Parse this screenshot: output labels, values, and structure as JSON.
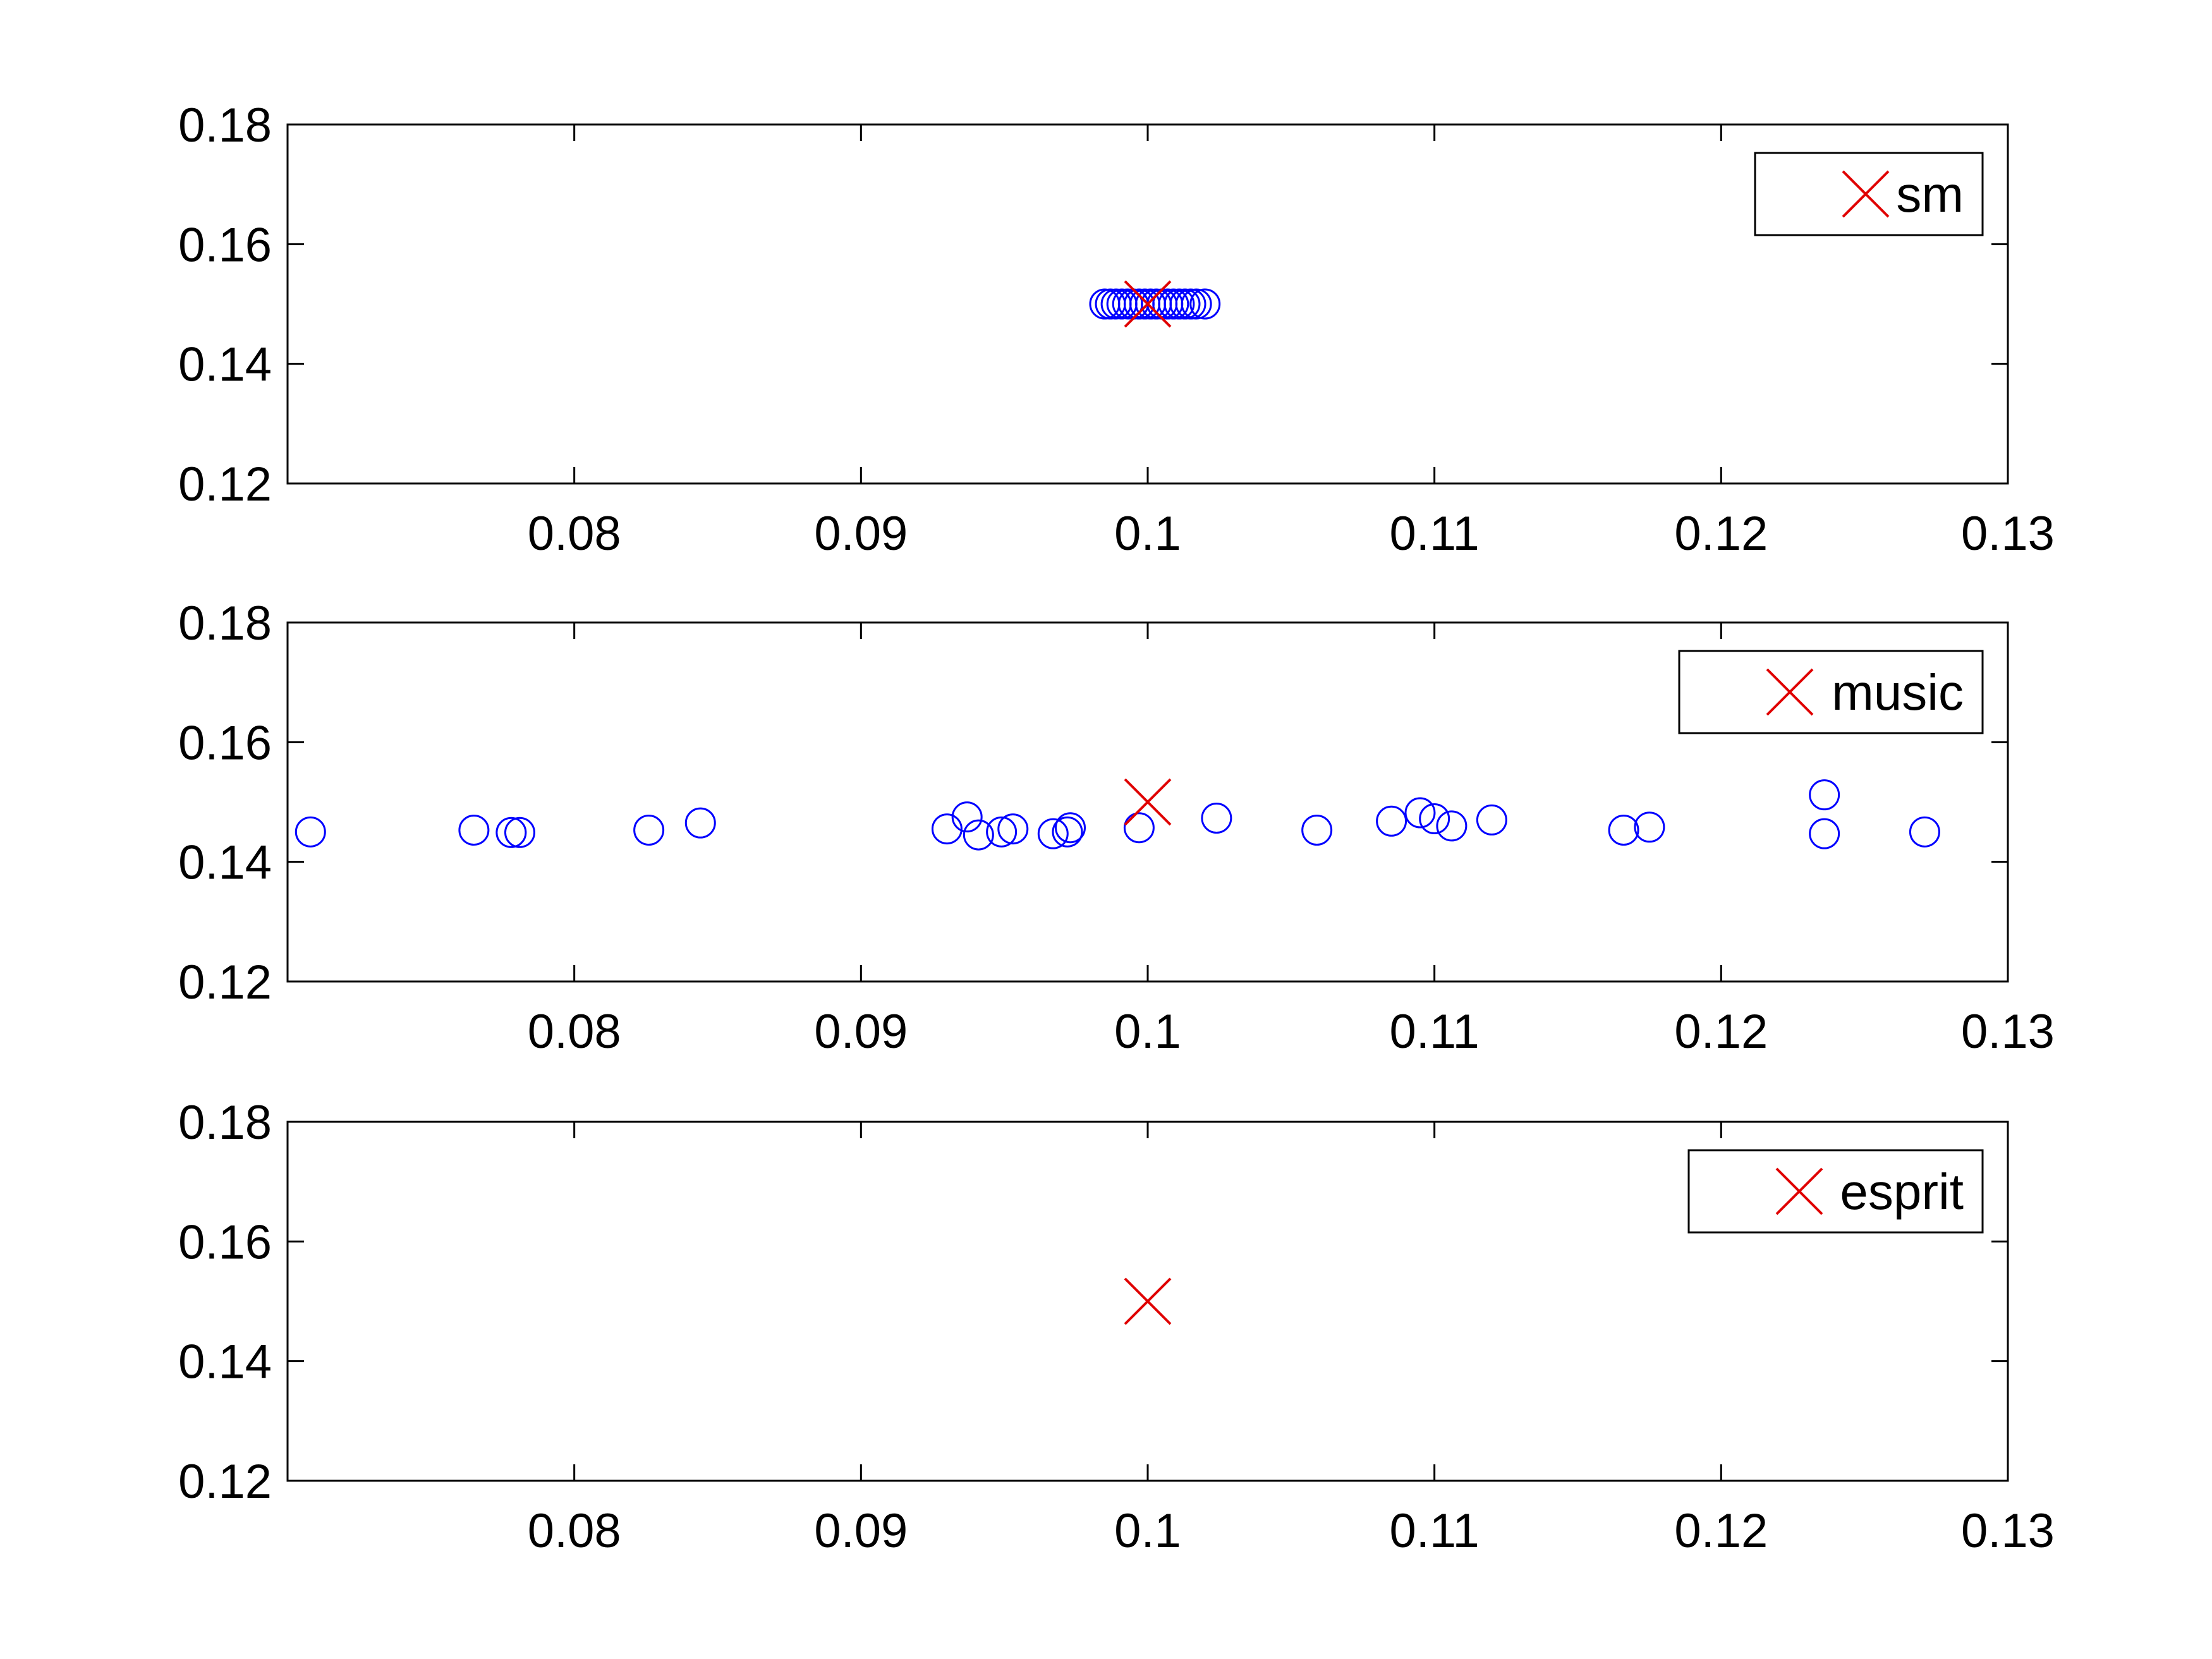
{
  "chart_data": [
    {
      "type": "scatter",
      "xlim": [
        0.07,
        0.13
      ],
      "ylim": [
        0.12,
        0.18
      ],
      "xticks": [
        "0.08",
        "0.09",
        "0.1",
        "0.11",
        "0.12",
        "0.13"
      ],
      "yticks": [
        "0.12",
        "0.14",
        "0.16",
        "0.18"
      ],
      "legend": {
        "label": "sm",
        "placement": "top-right",
        "marker": "x",
        "color": "#e00000"
      },
      "series": [
        {
          "marker": "circle",
          "color": "#0000ff",
          "points": [
            [
              0.0985,
              0.15
            ],
            [
              0.0987,
              0.15
            ],
            [
              0.0989,
              0.15
            ],
            [
              0.0991,
              0.15
            ],
            [
              0.0993,
              0.15
            ],
            [
              0.0995,
              0.15
            ],
            [
              0.0997,
              0.15
            ],
            [
              0.0999,
              0.15
            ],
            [
              0.1001,
              0.15
            ],
            [
              0.1003,
              0.15
            ],
            [
              0.1005,
              0.15
            ],
            [
              0.1007,
              0.15
            ],
            [
              0.1009,
              0.15
            ],
            [
              0.1011,
              0.15
            ],
            [
              0.1013,
              0.15
            ],
            [
              0.1015,
              0.15
            ],
            [
              0.1017,
              0.15
            ],
            [
              0.102,
              0.15
            ]
          ]
        },
        {
          "marker": "x",
          "color": "#e00000",
          "points": [
            [
              0.1,
              0.15
            ]
          ]
        }
      ]
    },
    {
      "type": "scatter",
      "xlim": [
        0.07,
        0.13
      ],
      "ylim": [
        0.12,
        0.18
      ],
      "xticks": [
        "0.08",
        "0.09",
        "0.1",
        "0.11",
        "0.12",
        "0.13"
      ],
      "yticks": [
        "0.12",
        "0.14",
        "0.16",
        "0.18"
      ],
      "legend": {
        "label": "music",
        "placement": "top-right",
        "marker": "x",
        "color": "#e00000"
      },
      "series": [
        {
          "marker": "circle",
          "color": "#0000ff",
          "points": [
            [
              0.0708,
              0.145
            ],
            [
              0.0765,
              0.1453
            ],
            [
              0.0778,
              0.1449
            ],
            [
              0.0781,
              0.1449
            ],
            [
              0.0826,
              0.1453
            ],
            [
              0.0844,
              0.1465
            ],
            [
              0.093,
              0.1455
            ],
            [
              0.0937,
              0.1475
            ],
            [
              0.0941,
              0.1445
            ],
            [
              0.0949,
              0.145
            ],
            [
              0.0953,
              0.1455
            ],
            [
              0.0967,
              0.1447
            ],
            [
              0.0972,
              0.145
            ],
            [
              0.0973,
              0.1457
            ],
            [
              0.0997,
              0.1457
            ],
            [
              0.1024,
              0.1473
            ],
            [
              0.1059,
              0.1453
            ],
            [
              0.1085,
              0.1468
            ],
            [
              0.1095,
              0.1482
            ],
            [
              0.11,
              0.1472
            ],
            [
              0.1106,
              0.146
            ],
            [
              0.112,
              0.147
            ],
            [
              0.1166,
              0.1453
            ],
            [
              0.1175,
              0.1458
            ],
            [
              0.1236,
              0.1512
            ],
            [
              0.1236,
              0.1447
            ],
            [
              0.1271,
              0.145
            ]
          ]
        },
        {
          "marker": "x",
          "color": "#e00000",
          "points": [
            [
              0.1,
              0.15
            ]
          ]
        }
      ]
    },
    {
      "type": "scatter",
      "xlim": [
        0.07,
        0.13
      ],
      "ylim": [
        0.12,
        0.18
      ],
      "xticks": [
        "0.08",
        "0.09",
        "0.1",
        "0.11",
        "0.12",
        "0.13"
      ],
      "yticks": [
        "0.12",
        "0.14",
        "0.16",
        "0.18"
      ],
      "legend": {
        "label": "esprit",
        "placement": "top-right",
        "marker": "x",
        "color": "#e00000"
      },
      "series": [
        {
          "marker": "x",
          "color": "#e00000",
          "points": [
            [
              0.1,
              0.15
            ]
          ]
        }
      ]
    }
  ]
}
